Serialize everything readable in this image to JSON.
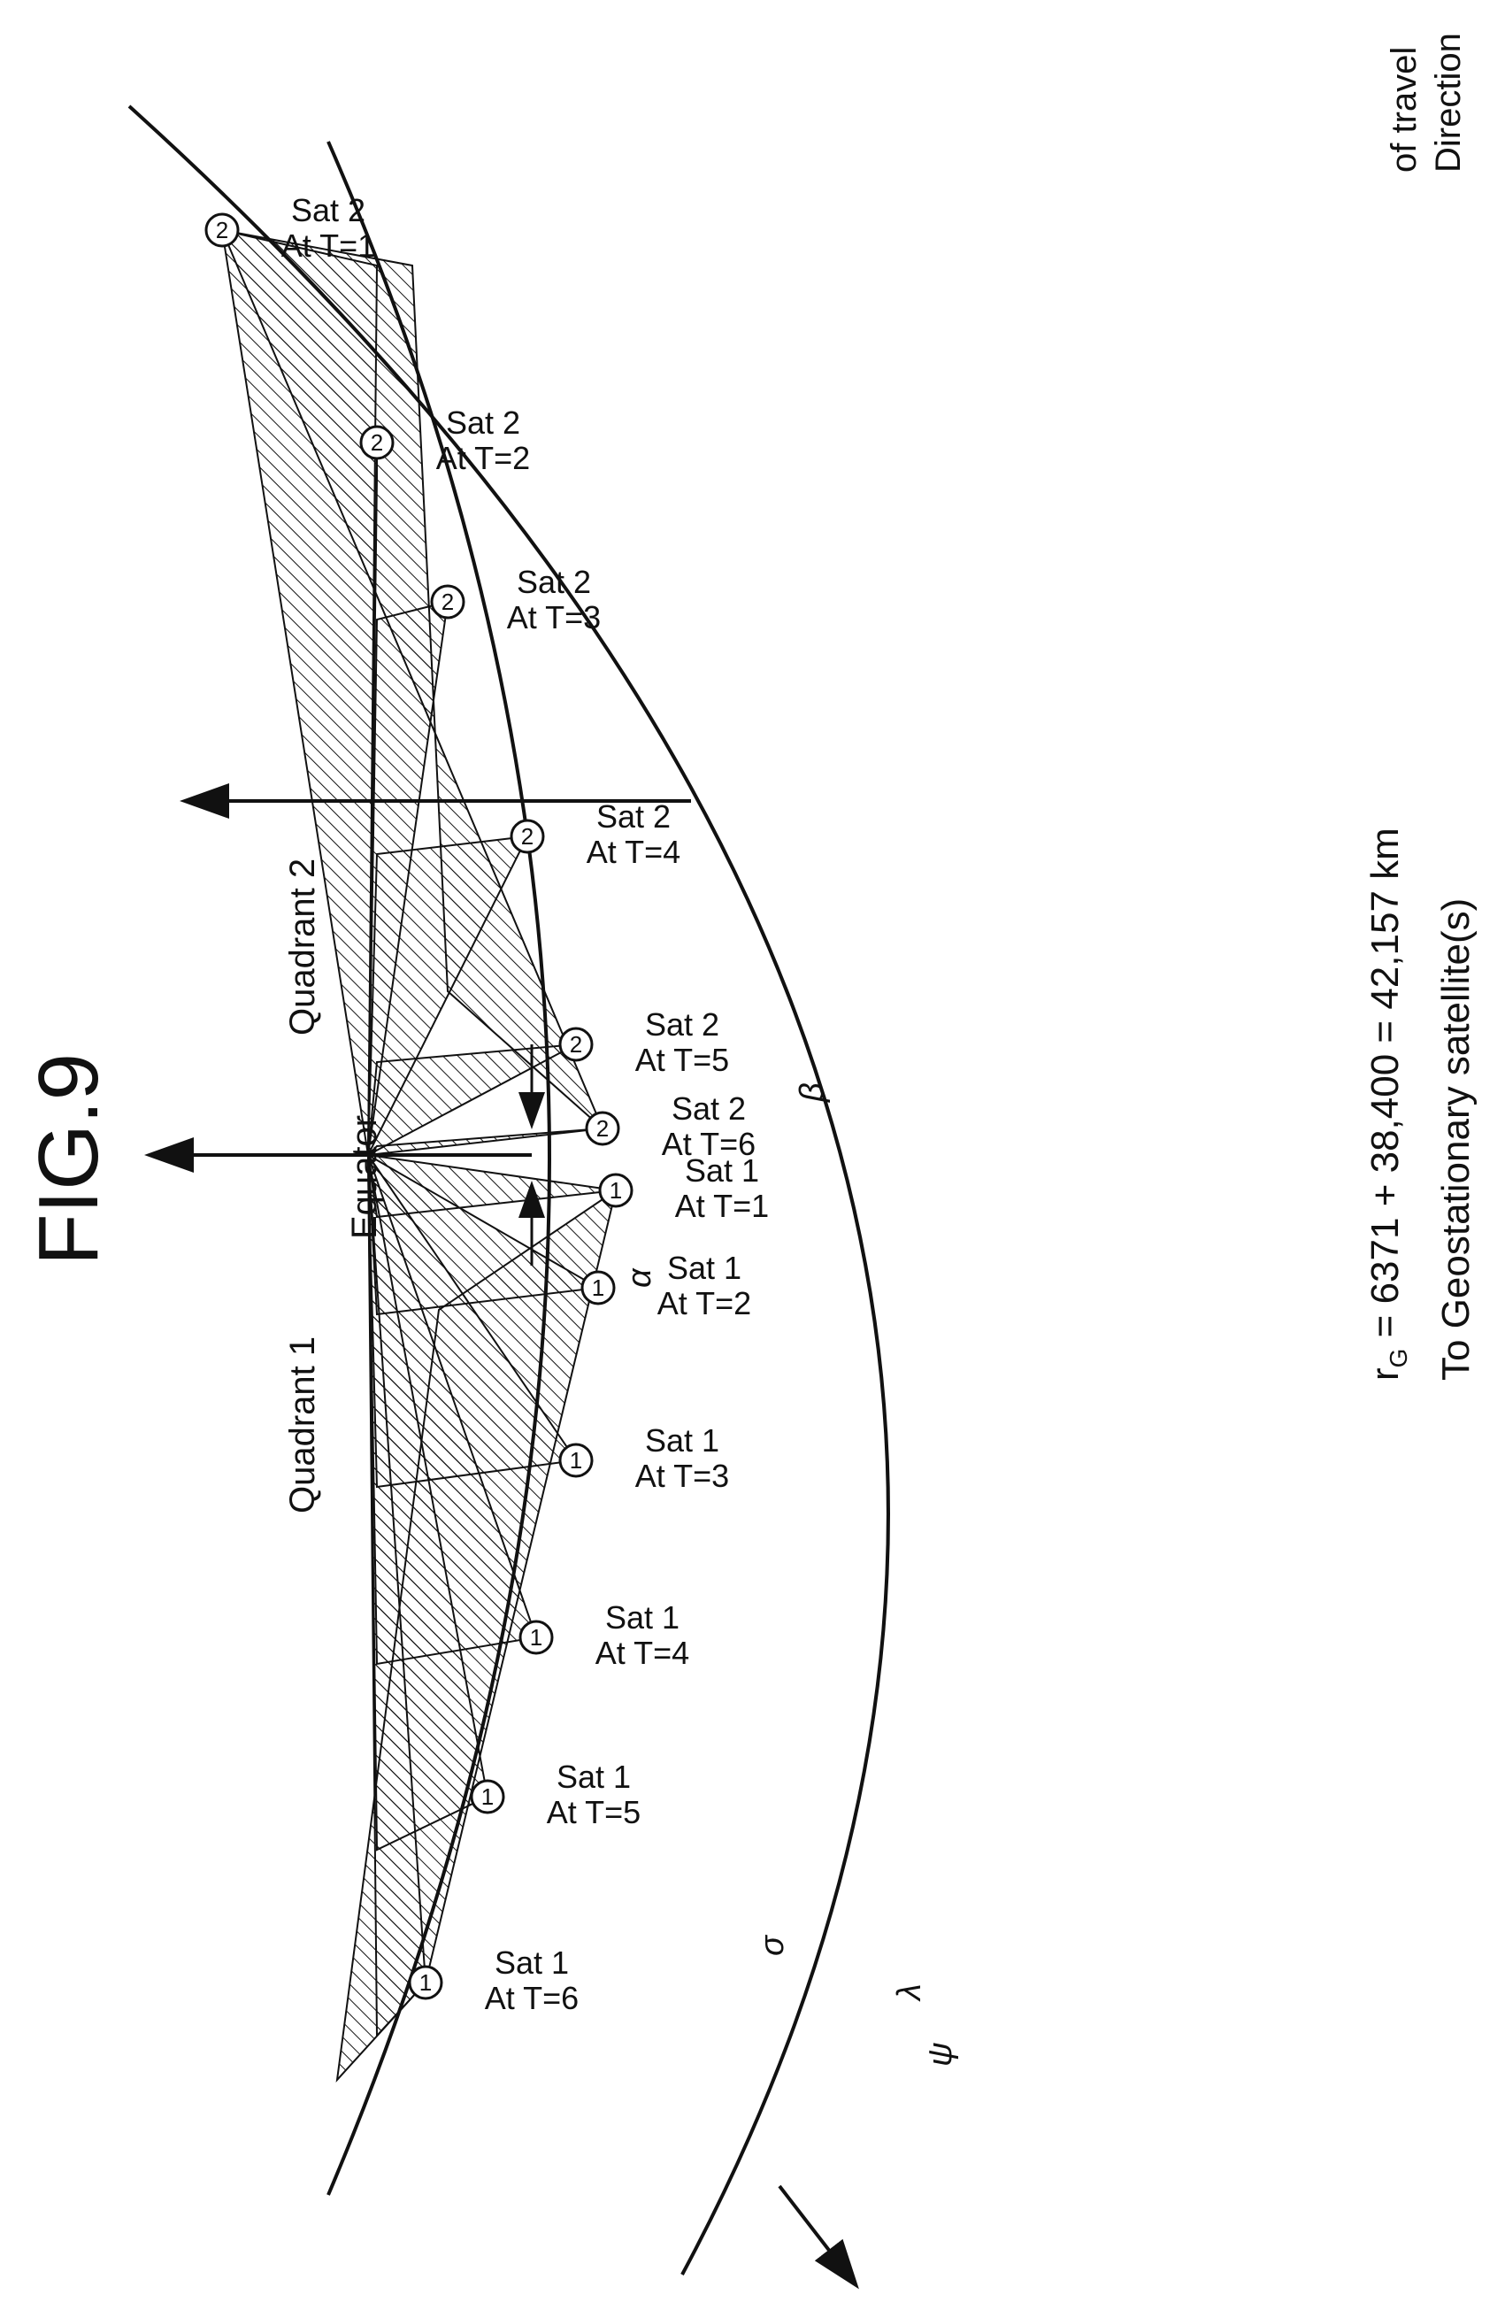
{
  "figure_label": "FIG.9",
  "header": {
    "line1": "To Geostationary satellite(s)",
    "line2": "r",
    "line2_sub": "G",
    "line2_rest": " = 6371 + 38,400 = 42,157 km"
  },
  "direction": {
    "line1": "Direction",
    "line2": "of travel"
  },
  "equator_label": "Equator",
  "quadrants": [
    "Quadrant 1",
    "Quadrant 2"
  ],
  "angles": {
    "alpha": "α",
    "beta": "β",
    "psi": "ψ",
    "lambda": "λ",
    "sigma": "σ"
  },
  "sat1": [
    {
      "sat": "Sat 1",
      "time": "At T=1",
      "marker": "1"
    },
    {
      "sat": "Sat 1",
      "time": "At T=2",
      "marker": "1"
    },
    {
      "sat": "Sat 1",
      "time": "At T=3",
      "marker": "1"
    },
    {
      "sat": "Sat 1",
      "time": "At T=4",
      "marker": "1"
    },
    {
      "sat": "Sat 1",
      "time": "At T=5",
      "marker": "1"
    },
    {
      "sat": "Sat 1",
      "time": "At T=6",
      "marker": "1"
    }
  ],
  "sat2": [
    {
      "sat": "Sat 2",
      "time": "At T=1",
      "marker": "2"
    },
    {
      "sat": "Sat 2",
      "time": "At T=2",
      "marker": "2"
    },
    {
      "sat": "Sat 2",
      "time": "At T=3",
      "marker": "2"
    },
    {
      "sat": "Sat 2",
      "time": "At T=4",
      "marker": "2"
    },
    {
      "sat": "Sat 2",
      "time": "At T=5",
      "marker": "2"
    },
    {
      "sat": "Sat 2",
      "time": "At T=6",
      "marker": "2"
    }
  ],
  "colors": {
    "ink": "#111111",
    "background": "#ffffff"
  }
}
